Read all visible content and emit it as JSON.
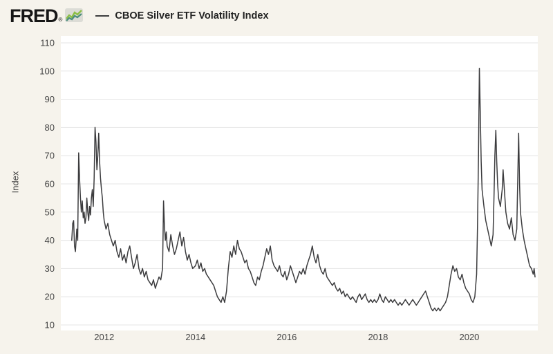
{
  "header": {
    "logo_text": "FRED",
    "logo_registered": "®",
    "logo_icon": "sparkline-icon",
    "legend_label": "CBOE Silver ETF Volatility Index"
  },
  "chart_data": {
    "type": "line",
    "title": "CBOE Silver ETF Volatility Index",
    "xlabel": "",
    "ylabel": "Index",
    "x_ticks": [
      2012,
      2014,
      2016,
      2018,
      2020
    ],
    "y_ticks": [
      10,
      20,
      30,
      40,
      50,
      60,
      70,
      80,
      90,
      100,
      110
    ],
    "xlim": [
      2011.05,
      2021.5
    ],
    "ylim": [
      10,
      110
    ],
    "grid": "horizontal",
    "legend_position": "top-left",
    "colors": {
      "background": "#f6f3ec",
      "plot_background": "#ffffff",
      "line": "#3c3c3e",
      "grid": "#e4e4e4",
      "tick_text": "#444444"
    },
    "series": [
      {
        "name": "CBOE Silver ETF Volatility Index",
        "points": [
          [
            2011.29,
            40
          ],
          [
            2011.31,
            46
          ],
          [
            2011.33,
            47
          ],
          [
            2011.35,
            38
          ],
          [
            2011.37,
            36
          ],
          [
            2011.4,
            44
          ],
          [
            2011.42,
            40
          ],
          [
            2011.44,
            71
          ],
          [
            2011.46,
            62
          ],
          [
            2011.48,
            55
          ],
          [
            2011.5,
            50
          ],
          [
            2011.52,
            54
          ],
          [
            2011.54,
            48
          ],
          [
            2011.56,
            50
          ],
          [
            2011.58,
            46
          ],
          [
            2011.6,
            48
          ],
          [
            2011.62,
            55
          ],
          [
            2011.64,
            50
          ],
          [
            2011.66,
            47
          ],
          [
            2011.68,
            52
          ],
          [
            2011.7,
            49
          ],
          [
            2011.72,
            55
          ],
          [
            2011.74,
            58
          ],
          [
            2011.76,
            52
          ],
          [
            2011.78,
            62
          ],
          [
            2011.8,
            80
          ],
          [
            2011.82,
            75
          ],
          [
            2011.84,
            65
          ],
          [
            2011.86,
            70
          ],
          [
            2011.88,
            78
          ],
          [
            2011.9,
            68
          ],
          [
            2011.92,
            62
          ],
          [
            2011.94,
            58
          ],
          [
            2011.96,
            55
          ],
          [
            2011.98,
            50
          ],
          [
            2012.0,
            47
          ],
          [
            2012.04,
            44
          ],
          [
            2012.08,
            46
          ],
          [
            2012.12,
            42
          ],
          [
            2012.16,
            40
          ],
          [
            2012.2,
            38
          ],
          [
            2012.24,
            40
          ],
          [
            2012.28,
            36
          ],
          [
            2012.32,
            34
          ],
          [
            2012.36,
            37
          ],
          [
            2012.4,
            33
          ],
          [
            2012.44,
            35
          ],
          [
            2012.48,
            32
          ],
          [
            2012.52,
            36
          ],
          [
            2012.56,
            38
          ],
          [
            2012.6,
            34
          ],
          [
            2012.64,
            30
          ],
          [
            2012.68,
            32
          ],
          [
            2012.72,
            35
          ],
          [
            2012.76,
            30
          ],
          [
            2012.8,
            28
          ],
          [
            2012.84,
            30
          ],
          [
            2012.88,
            27
          ],
          [
            2012.92,
            29
          ],
          [
            2012.96,
            26
          ],
          [
            2013.0,
            25
          ],
          [
            2013.04,
            24
          ],
          [
            2013.08,
            26
          ],
          [
            2013.12,
            23
          ],
          [
            2013.16,
            25
          ],
          [
            2013.2,
            27
          ],
          [
            2013.24,
            26
          ],
          [
            2013.28,
            30
          ],
          [
            2013.3,
            54
          ],
          [
            2013.32,
            45
          ],
          [
            2013.34,
            40
          ],
          [
            2013.36,
            43
          ],
          [
            2013.38,
            38
          ],
          [
            2013.42,
            36
          ],
          [
            2013.46,
            42
          ],
          [
            2013.5,
            38
          ],
          [
            2013.54,
            35
          ],
          [
            2013.58,
            37
          ],
          [
            2013.62,
            40
          ],
          [
            2013.66,
            43
          ],
          [
            2013.7,
            38
          ],
          [
            2013.74,
            41
          ],
          [
            2013.78,
            36
          ],
          [
            2013.82,
            33
          ],
          [
            2013.86,
            35
          ],
          [
            2013.9,
            32
          ],
          [
            2013.94,
            30
          ],
          [
            2014.0,
            31
          ],
          [
            2014.04,
            33
          ],
          [
            2014.08,
            30
          ],
          [
            2014.12,
            32
          ],
          [
            2014.16,
            29
          ],
          [
            2014.2,
            30
          ],
          [
            2014.24,
            28
          ],
          [
            2014.28,
            27
          ],
          [
            2014.32,
            26
          ],
          [
            2014.36,
            25
          ],
          [
            2014.4,
            24
          ],
          [
            2014.44,
            22
          ],
          [
            2014.48,
            20
          ],
          [
            2014.52,
            19
          ],
          [
            2014.56,
            18
          ],
          [
            2014.6,
            20
          ],
          [
            2014.64,
            18
          ],
          [
            2014.68,
            22
          ],
          [
            2014.72,
            30
          ],
          [
            2014.76,
            36
          ],
          [
            2014.8,
            34
          ],
          [
            2014.84,
            38
          ],
          [
            2014.88,
            35
          ],
          [
            2014.92,
            40
          ],
          [
            2014.96,
            37
          ],
          [
            2015.0,
            36
          ],
          [
            2015.04,
            34
          ],
          [
            2015.08,
            32
          ],
          [
            2015.12,
            33
          ],
          [
            2015.16,
            30
          ],
          [
            2015.2,
            29
          ],
          [
            2015.24,
            27
          ],
          [
            2015.28,
            25
          ],
          [
            2015.32,
            24
          ],
          [
            2015.36,
            27
          ],
          [
            2015.4,
            26
          ],
          [
            2015.44,
            29
          ],
          [
            2015.48,
            31
          ],
          [
            2015.52,
            34
          ],
          [
            2015.56,
            37
          ],
          [
            2015.6,
            35
          ],
          [
            2015.64,
            38
          ],
          [
            2015.68,
            33
          ],
          [
            2015.72,
            31
          ],
          [
            2015.76,
            30
          ],
          [
            2015.8,
            29
          ],
          [
            2015.84,
            31
          ],
          [
            2015.88,
            28
          ],
          [
            2015.92,
            27
          ],
          [
            2015.96,
            29
          ],
          [
            2016.0,
            26
          ],
          [
            2016.04,
            28
          ],
          [
            2016.08,
            31
          ],
          [
            2016.12,
            29
          ],
          [
            2016.16,
            27
          ],
          [
            2016.2,
            25
          ],
          [
            2016.24,
            27
          ],
          [
            2016.28,
            29
          ],
          [
            2016.32,
            28
          ],
          [
            2016.36,
            30
          ],
          [
            2016.4,
            28
          ],
          [
            2016.44,
            31
          ],
          [
            2016.48,
            33
          ],
          [
            2016.52,
            35
          ],
          [
            2016.56,
            38
          ],
          [
            2016.6,
            34
          ],
          [
            2016.64,
            32
          ],
          [
            2016.68,
            35
          ],
          [
            2016.72,
            31
          ],
          [
            2016.76,
            29
          ],
          [
            2016.8,
            28
          ],
          [
            2016.84,
            30
          ],
          [
            2016.88,
            27
          ],
          [
            2016.92,
            26
          ],
          [
            2016.96,
            25
          ],
          [
            2017.0,
            24
          ],
          [
            2017.04,
            25
          ],
          [
            2017.08,
            23
          ],
          [
            2017.12,
            22
          ],
          [
            2017.16,
            23
          ],
          [
            2017.2,
            21
          ],
          [
            2017.24,
            22
          ],
          [
            2017.28,
            20
          ],
          [
            2017.32,
            21
          ],
          [
            2017.36,
            20
          ],
          [
            2017.4,
            19
          ],
          [
            2017.44,
            20
          ],
          [
            2017.48,
            19
          ],
          [
            2017.52,
            18
          ],
          [
            2017.56,
            20
          ],
          [
            2017.6,
            21
          ],
          [
            2017.64,
            19
          ],
          [
            2017.68,
            20
          ],
          [
            2017.72,
            21
          ],
          [
            2017.76,
            19
          ],
          [
            2017.8,
            18
          ],
          [
            2017.84,
            19
          ],
          [
            2017.88,
            18
          ],
          [
            2017.92,
            19
          ],
          [
            2017.96,
            18
          ],
          [
            2018.0,
            19
          ],
          [
            2018.04,
            21
          ],
          [
            2018.08,
            19
          ],
          [
            2018.12,
            18
          ],
          [
            2018.16,
            20
          ],
          [
            2018.2,
            19
          ],
          [
            2018.24,
            18
          ],
          [
            2018.28,
            19
          ],
          [
            2018.32,
            18
          ],
          [
            2018.36,
            19
          ],
          [
            2018.4,
            18
          ],
          [
            2018.44,
            17
          ],
          [
            2018.48,
            18
          ],
          [
            2018.52,
            17
          ],
          [
            2018.56,
            18
          ],
          [
            2018.6,
            19
          ],
          [
            2018.64,
            18
          ],
          [
            2018.68,
            17
          ],
          [
            2018.72,
            18
          ],
          [
            2018.76,
            19
          ],
          [
            2018.8,
            18
          ],
          [
            2018.84,
            17
          ],
          [
            2018.88,
            18
          ],
          [
            2018.92,
            19
          ],
          [
            2018.96,
            20
          ],
          [
            2019.0,
            21
          ],
          [
            2019.04,
            22
          ],
          [
            2019.08,
            20
          ],
          [
            2019.12,
            18
          ],
          [
            2019.16,
            16
          ],
          [
            2019.2,
            15
          ],
          [
            2019.24,
            16
          ],
          [
            2019.28,
            15
          ],
          [
            2019.32,
            16
          ],
          [
            2019.36,
            15
          ],
          [
            2019.4,
            16
          ],
          [
            2019.44,
            17
          ],
          [
            2019.48,
            18
          ],
          [
            2019.52,
            20
          ],
          [
            2019.56,
            24
          ],
          [
            2019.6,
            28
          ],
          [
            2019.64,
            31
          ],
          [
            2019.68,
            29
          ],
          [
            2019.72,
            30
          ],
          [
            2019.76,
            27
          ],
          [
            2019.8,
            26
          ],
          [
            2019.84,
            28
          ],
          [
            2019.88,
            25
          ],
          [
            2019.92,
            23
          ],
          [
            2019.96,
            22
          ],
          [
            2020.0,
            21
          ],
          [
            2020.04,
            19
          ],
          [
            2020.08,
            18
          ],
          [
            2020.12,
            20
          ],
          [
            2020.16,
            28
          ],
          [
            2020.18,
            45
          ],
          [
            2020.2,
            70
          ],
          [
            2020.22,
            101
          ],
          [
            2020.24,
            85
          ],
          [
            2020.26,
            68
          ],
          [
            2020.28,
            58
          ],
          [
            2020.32,
            52
          ],
          [
            2020.36,
            47
          ],
          [
            2020.4,
            44
          ],
          [
            2020.44,
            41
          ],
          [
            2020.48,
            38
          ],
          [
            2020.52,
            42
          ],
          [
            2020.54,
            55
          ],
          [
            2020.56,
            70
          ],
          [
            2020.58,
            79
          ],
          [
            2020.6,
            68
          ],
          [
            2020.62,
            60
          ],
          [
            2020.64,
            55
          ],
          [
            2020.68,
            52
          ],
          [
            2020.72,
            58
          ],
          [
            2020.74,
            65
          ],
          [
            2020.76,
            60
          ],
          [
            2020.8,
            50
          ],
          [
            2020.84,
            46
          ],
          [
            2020.88,
            44
          ],
          [
            2020.92,
            48
          ],
          [
            2020.96,
            42
          ],
          [
            2021.0,
            40
          ],
          [
            2021.04,
            44
          ],
          [
            2021.08,
            78
          ],
          [
            2021.1,
            60
          ],
          [
            2021.12,
            50
          ],
          [
            2021.16,
            44
          ],
          [
            2021.2,
            40
          ],
          [
            2021.24,
            37
          ],
          [
            2021.28,
            34
          ],
          [
            2021.32,
            31
          ],
          [
            2021.36,
            30
          ],
          [
            2021.4,
            28
          ],
          [
            2021.42,
            30
          ],
          [
            2021.44,
            27
          ]
        ]
      }
    ]
  }
}
